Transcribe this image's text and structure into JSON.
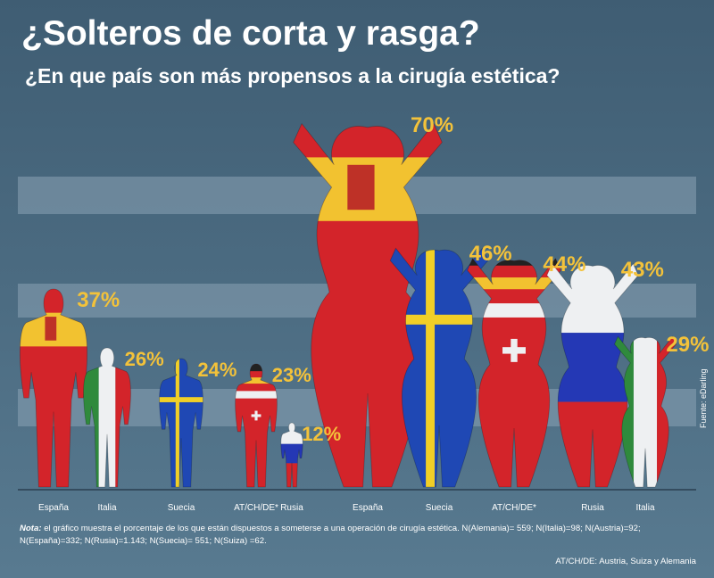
{
  "header": {
    "title": "¿Solteros de corta y rasga?",
    "subtitle": "¿En que país son más propensos a la cirugía estética?"
  },
  "chart_data": [
    {
      "type": "bar",
      "title": "¿Solteros de corta y rasga?",
      "subtitle": "¿En que país son más propensos a la cirugía estética?",
      "group": "Hombres",
      "categories": [
        "España",
        "Italia",
        "Suecia",
        "AT/CH/DE*",
        "Rusia"
      ],
      "values": [
        37,
        26,
        24,
        23,
        12
      ],
      "value_labels": [
        "37%",
        "26%",
        "24%",
        "23%",
        "12%"
      ],
      "ylim": [
        0,
        70
      ]
    },
    {
      "type": "bar",
      "group": "Mujeres",
      "categories": [
        "España",
        "Suecia",
        "AT/CH/DE*",
        "Rusia",
        "Italia"
      ],
      "values": [
        70,
        46,
        44,
        43,
        29
      ],
      "value_labels": [
        "70%",
        "46%",
        "44%",
        "43%",
        "29%"
      ],
      "ylim": [
        0,
        70
      ]
    }
  ],
  "footer": {
    "note_label": "Nota:",
    "note_text": "el gráfico muestra el porcentaje de los que están dispuestos a someterse a una operación de cirugía estética. N(Alemania)= 559; N(Italia)=98; N(Austria)=92; N(España)=332; N(Rusia)=1.143; N(Suecia)= 551; N(Suiza) =62.",
    "abbreviation": "AT/CH/DE: Austria, Suiza y Alemania",
    "source": "Fuente: eDarling"
  },
  "colors": {
    "background": "#4c6a80",
    "band": "#8aa3b4",
    "percent_label": "#f3c23a",
    "spain_red": "#d3242a",
    "spain_yellow": "#f2c230",
    "italy_green": "#2f8a3c",
    "sweden_blue": "#1f48b4",
    "sweden_yellow": "#f1cf27",
    "russia_blue": "#2438b5"
  }
}
